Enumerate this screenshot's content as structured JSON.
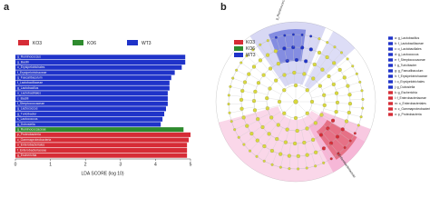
{
  "chart_data": {
    "type": "bar",
    "orientation": "horizontal",
    "panel_label": "a",
    "xlabel": "LDA SCORE (log 10)",
    "categories": [
      "g_Ruminococcus",
      "g_Bacilli",
      "o_Erysipelotrichales",
      "f_Erysipelotrichaceae",
      "g_Faecalibaculum",
      "f_Lactobacillaceae",
      "g_Lactobacillus",
      "o_Lactobacillales",
      "c_Bacilli",
      "f_Streptococcaceae",
      "g_Lactococcus",
      "g_Turicibacter",
      "s_Lactococcus",
      "g_Dubosiella",
      "g_Ruminococcaceae",
      "p_Proteobacteria",
      "c_Gammaproteobacteria",
      "o_Enterobacteriales",
      "f_Enterobacteriaceae",
      "g_Escherichia"
    ],
    "series": [
      {
        "name": "KO3",
        "color": "#d62c36",
        "values": [
          null,
          null,
          null,
          null,
          null,
          null,
          null,
          null,
          null,
          null,
          null,
          null,
          null,
          null,
          null,
          5.0,
          4.95,
          4.9,
          4.9,
          4.9
        ]
      },
      {
        "name": "KO6",
        "color": "#2e8b2e",
        "values": [
          null,
          null,
          null,
          null,
          null,
          null,
          null,
          null,
          null,
          null,
          null,
          null,
          null,
          null,
          4.8,
          null,
          null,
          null,
          null,
          null
        ]
      },
      {
        "name": "WT3",
        "color": "#1f33c9",
        "values": [
          4.85,
          4.85,
          4.75,
          4.55,
          4.45,
          4.4,
          4.4,
          4.35,
          4.35,
          4.35,
          4.3,
          4.25,
          4.2,
          4.15,
          null,
          null,
          null,
          null,
          null,
          null
        ]
      }
    ],
    "xlim": [
      0,
      5
    ],
    "xticks": [
      0,
      1,
      2,
      3,
      4,
      5
    ]
  },
  "panel_b": {
    "panel_label": "b",
    "legend": [
      {
        "name": "KO3",
        "color": "#d62c36"
      },
      {
        "name": "KO6",
        "color": "#2e8b2e"
      },
      {
        "name": "WT3",
        "color": "#1f33c9"
      }
    ],
    "clade_labels": [
      "g_Ruminococcus",
      "f_Enterobacteriaceae"
    ],
    "key": [
      {
        "label": "a: g_Lactobacillus",
        "color": "#1f33c9"
      },
      {
        "label": "b: f_Lactobacillaceae",
        "color": "#1f33c9"
      },
      {
        "label": "c: o_Lactobacillales",
        "color": "#1f33c9"
      },
      {
        "label": "d: g_Lactococcus",
        "color": "#1f33c9"
      },
      {
        "label": "e: f_Streptococcaceae",
        "color": "#1f33c9"
      },
      {
        "label": "f: g_Turicibacter",
        "color": "#1f33c9"
      },
      {
        "label": "g: g_Faecalibaculum",
        "color": "#1f33c9"
      },
      {
        "label": "h: f_Erysipelotrichaceae",
        "color": "#1f33c9"
      },
      {
        "label": "i: o_Erysipelotrichales",
        "color": "#1f33c9"
      },
      {
        "label": "j: g_Dubosiella",
        "color": "#1f33c9"
      },
      {
        "label": "k: g_Escherichia",
        "color": "#d62c36"
      },
      {
        "label": "l: f_Enterobacteriaceae",
        "color": "#d62c36"
      },
      {
        "label": "m: o_Enterobacteriales",
        "color": "#d62c36"
      },
      {
        "label": "n: c_Gammaproteobacteria",
        "color": "#d62c36"
      },
      {
        "label": "o: p_Proteobacteria",
        "color": "#d62c36"
      }
    ]
  }
}
